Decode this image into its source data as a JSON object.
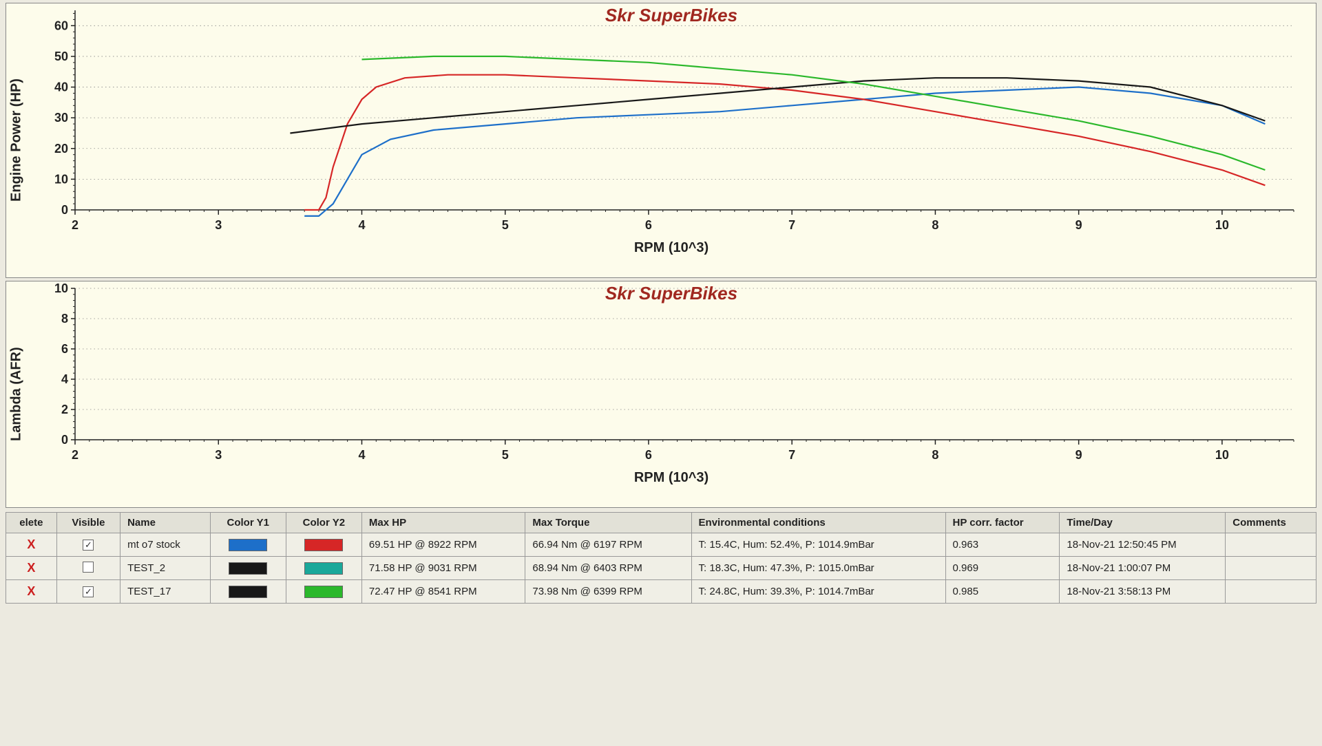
{
  "watermark": "Skr SuperBikes",
  "watermark_color": "#a02820",
  "power_chart": {
    "type": "line",
    "ylabel": "Engine Power (HP)",
    "xlabel": "RPM (10^3)",
    "background_color": "#fdfceb",
    "grid_color": "#888888",
    "xlim": [
      2,
      10.5
    ],
    "ylim": [
      0,
      65
    ],
    "xtick_step": 1,
    "yticks": [
      0,
      10,
      20,
      30,
      40,
      50,
      60
    ],
    "label_fontsize": 20,
    "tick_fontsize": 18,
    "series": [
      {
        "name": "mt o7 stock Y1",
        "color": "#1d6fc9",
        "x": [
          3.6,
          3.7,
          3.8,
          3.9,
          4.0,
          4.2,
          4.5,
          5.0,
          5.5,
          6.0,
          6.5,
          7.0,
          7.5,
          8.0,
          8.5,
          9.0,
          9.5,
          10.0,
          10.3
        ],
        "y": [
          -2,
          -2,
          2,
          10,
          18,
          23,
          26,
          28,
          30,
          31,
          32,
          34,
          36,
          38,
          39,
          40,
          38,
          34,
          28
        ]
      },
      {
        "name": "mt o7 stock Y2",
        "color": "#d62626",
        "x": [
          3.6,
          3.7,
          3.75,
          3.8,
          3.9,
          4.0,
          4.1,
          4.3,
          4.6,
          5.0,
          5.5,
          6.0,
          6.5,
          7.0,
          7.5,
          8.0,
          8.5,
          9.0,
          9.5,
          10.0,
          10.3
        ],
        "y": [
          0,
          0,
          4,
          14,
          28,
          36,
          40,
          43,
          44,
          44,
          43,
          42,
          41,
          39,
          36,
          32,
          28,
          24,
          19,
          13,
          8
        ]
      },
      {
        "name": "TEST_17 Y1",
        "color": "#181818",
        "x": [
          3.5,
          4.0,
          4.5,
          5.0,
          5.5,
          6.0,
          6.5,
          7.0,
          7.5,
          8.0,
          8.5,
          9.0,
          9.5,
          10.0,
          10.3
        ],
        "y": [
          25,
          28,
          30,
          32,
          34,
          36,
          38,
          40,
          42,
          43,
          43,
          42,
          40,
          34,
          29
        ]
      },
      {
        "name": "TEST_17 Y2",
        "color": "#2bb82b",
        "x": [
          4.0,
          4.5,
          5.0,
          5.5,
          6.0,
          6.5,
          7.0,
          7.5,
          8.0,
          8.5,
          9.0,
          9.5,
          10.0,
          10.3
        ],
        "y": [
          49,
          50,
          50,
          49,
          48,
          46,
          44,
          41,
          37,
          33,
          29,
          24,
          18,
          13
        ]
      }
    ]
  },
  "lambda_chart": {
    "type": "line",
    "ylabel": "Lambda (AFR)",
    "xlabel": "RPM (10^3)",
    "background_color": "#fdfceb",
    "grid_color": "#888888",
    "xlim": [
      2,
      10.5
    ],
    "ylim": [
      0,
      10
    ],
    "xtick_step": 1,
    "yticks": [
      0,
      2,
      4,
      6,
      8,
      10
    ],
    "label_fontsize": 20,
    "tick_fontsize": 18,
    "series": []
  },
  "table": {
    "columns": [
      "elete",
      "Visible",
      "Name",
      "Color Y1",
      "Color Y2",
      "Max HP",
      "Max Torque",
      "Environmental conditions",
      "HP corr. factor",
      "Time/Day",
      "Comments"
    ],
    "rows": [
      {
        "delete": "X",
        "visible": true,
        "name": "mt o7 stock",
        "color_y1": "#1d6fc9",
        "color_y2": "#d62626",
        "max_hp": "69.51 HP @ 8922 RPM",
        "max_torque": "66.94 Nm @ 6197 RPM",
        "env": "T: 15.4C, Hum: 52.4%, P: 1014.9mBar",
        "hp_corr": "0.963",
        "time": "18-Nov-21 12:50:45 PM",
        "comments": ""
      },
      {
        "delete": "X",
        "visible": false,
        "name": "TEST_2",
        "color_y1": "#181818",
        "color_y2": "#1aa89a",
        "max_hp": "71.58 HP @ 9031 RPM",
        "max_torque": "68.94 Nm @ 6403 RPM",
        "env": "T: 18.3C, Hum: 47.3%, P: 1015.0mBar",
        "hp_corr": "0.969",
        "time": "18-Nov-21 1:00:07 PM",
        "comments": ""
      },
      {
        "delete": "X",
        "visible": true,
        "name": "TEST_17",
        "color_y1": "#181818",
        "color_y2": "#2bb82b",
        "max_hp": "72.47 HP @ 8541 RPM",
        "max_torque": "73.98 Nm @ 6399 RPM",
        "env": "T: 24.8C, Hum: 39.3%, P: 1014.7mBar",
        "hp_corr": "0.985",
        "time": "18-Nov-21 3:58:13 PM",
        "comments": ""
      }
    ]
  }
}
